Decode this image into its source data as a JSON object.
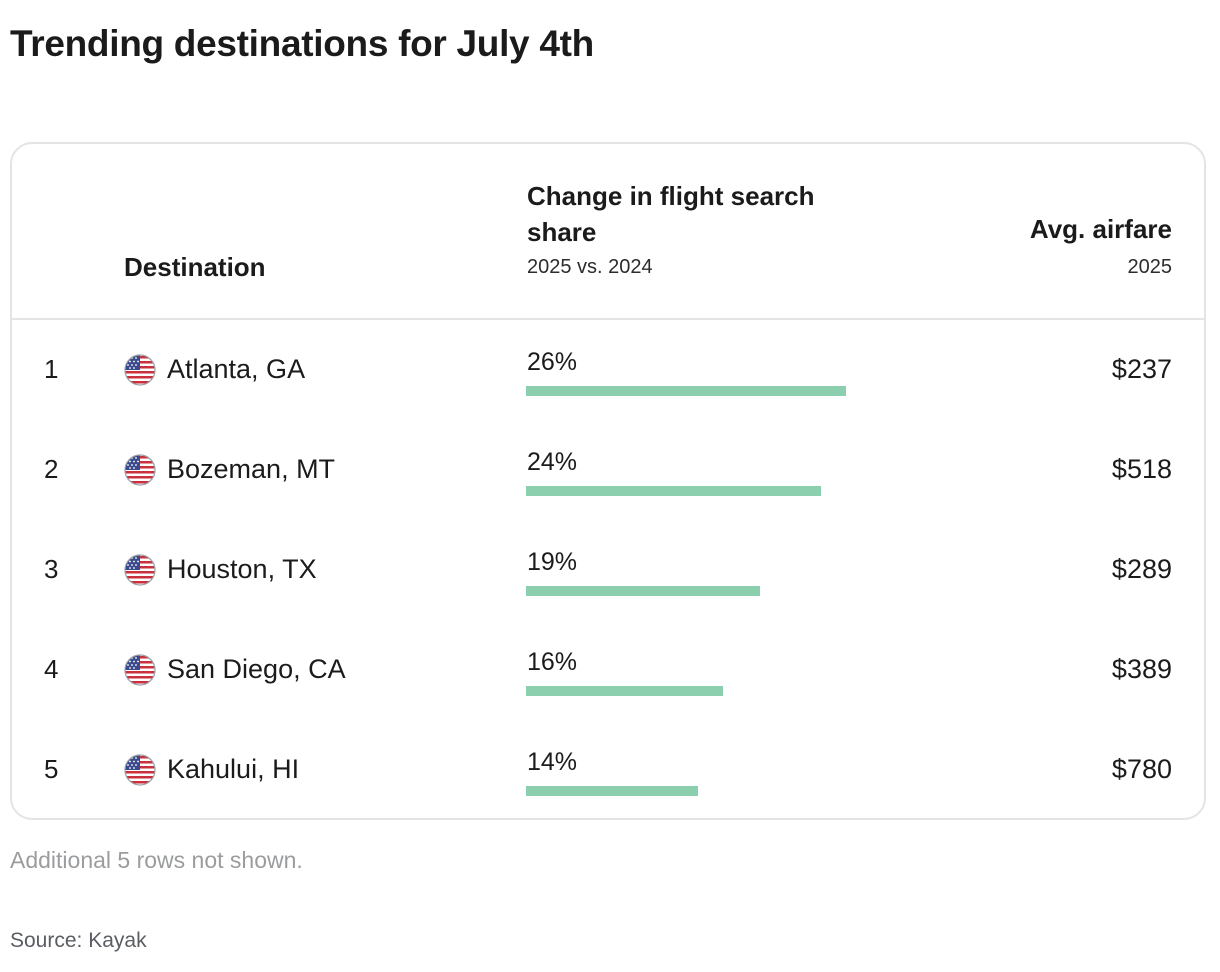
{
  "title": "Trending destinations for July 4th",
  "table": {
    "columns": {
      "destination": {
        "label": "Destination"
      },
      "change": {
        "label": "Change in flight search share",
        "sublabel": "2025 vs. 2024"
      },
      "airfare": {
        "label": "Avg. airfare",
        "sublabel": "2025"
      }
    },
    "rows": [
      {
        "rank": "1",
        "destination": "Atlanta, GA",
        "change": "26%",
        "change_value": 26,
        "airfare": "$237",
        "flag_icon": "us-flag-icon"
      },
      {
        "rank": "2",
        "destination": "Bozeman, MT",
        "change": "24%",
        "change_value": 24,
        "airfare": "$518",
        "flag_icon": "us-flag-icon"
      },
      {
        "rank": "3",
        "destination": "Houston, TX",
        "change": "19%",
        "change_value": 19,
        "airfare": "$289",
        "flag_icon": "us-flag-icon"
      },
      {
        "rank": "4",
        "destination": "San Diego, CA",
        "change": "16%",
        "change_value": 16,
        "airfare": "$389",
        "flag_icon": "us-flag-icon"
      },
      {
        "rank": "5",
        "destination": "Kahului, HI",
        "change": "14%",
        "change_value": 14,
        "airfare": "$780",
        "flag_icon": "us-flag-icon"
      }
    ]
  },
  "footnote": "Additional 5 rows not shown.",
  "source": "Source: Kayak",
  "colors": {
    "bar": "#8ccfaf",
    "border": "#e2e4e6",
    "text": "#1b1b1b",
    "muted": "#9a9c9e"
  }
}
